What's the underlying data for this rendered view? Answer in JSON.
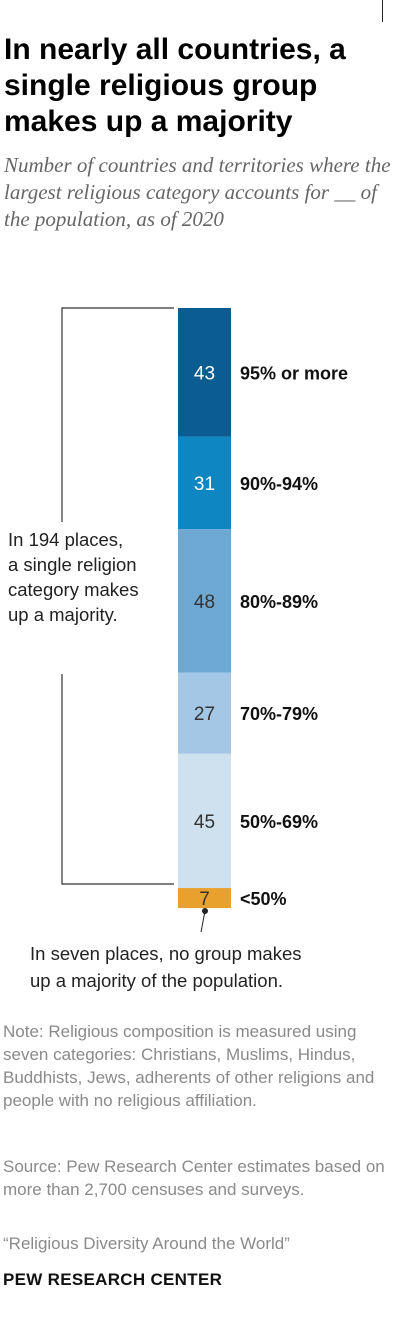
{
  "header": {
    "title": "In nearly all countries, a single religious group makes up a majority",
    "subtitle": "Number of countries and territories where the largest religious category accounts for __ of the population, as of 2020"
  },
  "chart_data": {
    "type": "bar",
    "orientation": "stacked-vertical",
    "categories": [
      "95% or more",
      "90%-94%",
      "80%-89%",
      "70%-79%",
      "50%-69%",
      "<50%"
    ],
    "values": [
      43,
      31,
      48,
      27,
      45,
      7
    ],
    "colors": [
      "#0b5c91",
      "#0d86c2",
      "#6ea9d3",
      "#a3c7e5",
      "#cfe1ef",
      "#e8a12c"
    ],
    "value_label_colors": [
      "#ffffff",
      "#ffffff",
      "#333333",
      "#333333",
      "#333333",
      "#333333"
    ],
    "annotations": {
      "majority": "In 194 places, a single religion category makes up a majority.",
      "no_majority": "In seven places, no group makes up a majority of the population."
    }
  },
  "footer": {
    "note": "Note: Religious composition is measured using seven categories: Christians, Muslims, Hindus, Buddhists, Jews, adherents of other religions and people with no religious affiliation.",
    "source": "Source: Pew Research Center estimates based on more than 2,700 censuses and surveys.",
    "report": "“Religious Diversity Around the World”",
    "brand": "PEW RESEARCH CENTER"
  }
}
